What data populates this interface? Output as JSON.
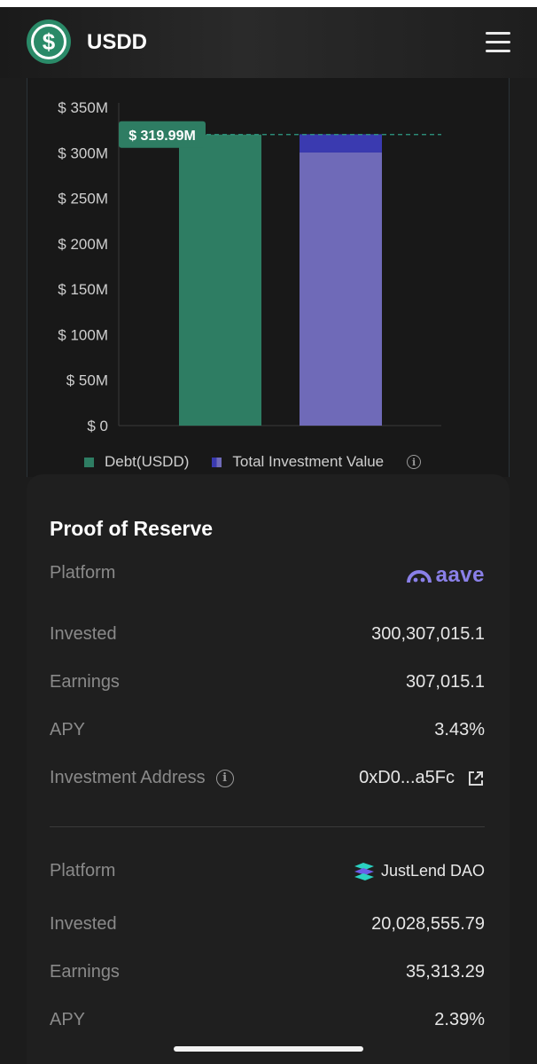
{
  "header": {
    "title": "USDD",
    "logo_glyph": "$",
    "menu_icon": "hamburger-menu-icon"
  },
  "chart_data": {
    "type": "bar",
    "categories": [
      "Debt(USDD)",
      "Total Investment Value"
    ],
    "series": [
      {
        "name": "Debt(USDD)",
        "values": [
          319.99,
          null
        ],
        "color": "#2e7d63"
      },
      {
        "name": "Total Investment Value",
        "values": [
          null,
          320.34
        ],
        "segments": [
          300.31,
          20.03
        ],
        "segment_colors": [
          "#6f6ab8",
          "#3a3ab0"
        ]
      }
    ],
    "ylim": [
      0,
      350
    ],
    "yticks": [
      0,
      50,
      100,
      150,
      200,
      250,
      300,
      350
    ],
    "ytick_labels": [
      "$ 0",
      "$ 50M",
      "$ 100M",
      "$ 150M",
      "$ 200M",
      "$ 250M",
      "$ 300M",
      "$ 350M"
    ],
    "reference_line": {
      "value": 319.99,
      "label": "$ 319.99M",
      "style": "dashed",
      "color": "#2e9d86"
    },
    "legend": {
      "position": "bottom"
    },
    "grid": false
  },
  "legend": {
    "debt": "Debt(USDD)",
    "investment": "Total Investment Value"
  },
  "reserve": {
    "title": "Proof of Reserve",
    "platforms": [
      {
        "platform_label": "Platform",
        "platform_name": "aave",
        "invested_label": "Invested",
        "invested": "300,307,015.1",
        "earnings_label": "Earnings",
        "earnings": "307,015.1",
        "apy_label": "APY",
        "apy": "3.43%",
        "address_label": "Investment Address",
        "address": "0xD0...a5Fc"
      },
      {
        "platform_label": "Platform",
        "platform_name": "JustLend DAO",
        "invested_label": "Invested",
        "invested": "20,028,555.79",
        "earnings_label": "Earnings",
        "earnings": "35,313.29",
        "apy_label": "APY",
        "apy": "2.39%"
      }
    ]
  },
  "colors": {
    "accent": "#2e7d63",
    "aave": "#8a80e8",
    "background": "#1c1c1c"
  }
}
